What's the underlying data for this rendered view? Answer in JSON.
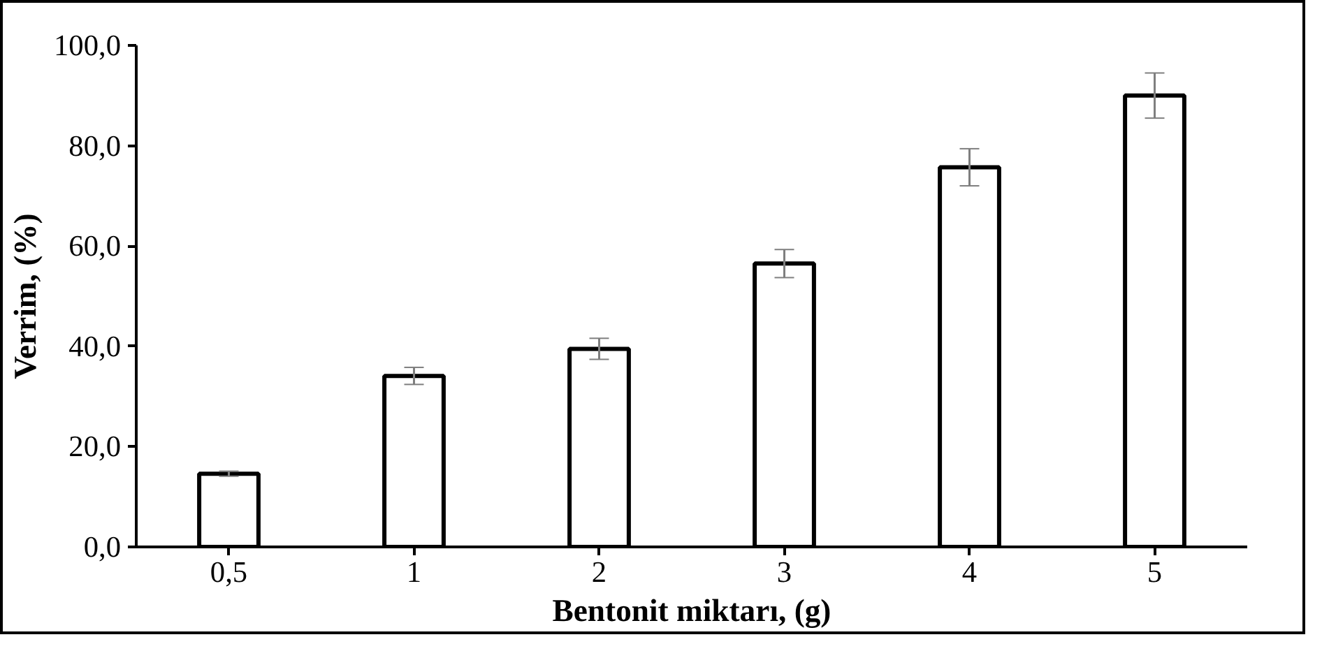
{
  "chart_data": {
    "type": "bar",
    "xlabel": "Bentonit miktarı, (g)",
    "ylabel": "Verrim, (%)",
    "categories": [
      "0,5",
      "1",
      "2",
      "3",
      "4",
      "5"
    ],
    "values": [
      14.6,
      34.1,
      39.5,
      56.5,
      75.7,
      90.0
    ],
    "errors": [
      0.5,
      1.7,
      2.1,
      2.8,
      3.7,
      4.5
    ],
    "color": "#ffffff",
    "ylim": [
      0,
      100
    ],
    "yticks": [
      {
        "value": 0,
        "label": "0,0"
      },
      {
        "value": 20,
        "label": "20,0"
      },
      {
        "value": 40,
        "label": "40,0"
      },
      {
        "value": 60,
        "label": "60,0"
      },
      {
        "value": 80,
        "label": "80,0"
      },
      {
        "value": 100,
        "label": "100,0"
      }
    ],
    "grid": false
  }
}
